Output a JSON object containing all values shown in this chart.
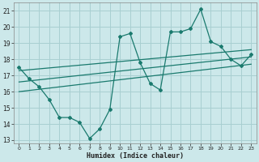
{
  "xlabel": "Humidex (Indice chaleur)",
  "ylabel": "",
  "bg_color": "#cce8ea",
  "grid_color": "#a8cfd1",
  "line_color": "#1a7a6e",
  "xlim": [
    -0.5,
    23.5
  ],
  "ylim": [
    12.8,
    21.5
  ],
  "yticks": [
    13,
    14,
    15,
    16,
    17,
    18,
    19,
    20,
    21
  ],
  "xticks": [
    0,
    1,
    2,
    3,
    4,
    5,
    6,
    7,
    8,
    9,
    10,
    11,
    12,
    13,
    14,
    15,
    16,
    17,
    18,
    19,
    20,
    21,
    22,
    23
  ],
  "main_line_x": [
    0,
    1,
    2,
    3,
    4,
    5,
    6,
    7,
    8,
    9,
    10,
    11,
    12,
    13,
    14,
    15,
    16,
    17,
    18,
    19,
    20,
    21,
    22,
    23
  ],
  "main_line_y": [
    17.5,
    16.8,
    16.3,
    15.5,
    14.4,
    14.4,
    14.1,
    13.1,
    13.7,
    14.9,
    19.4,
    19.6,
    17.8,
    16.5,
    16.1,
    19.7,
    19.7,
    19.9,
    21.1,
    19.1,
    18.8,
    18.0,
    17.6,
    18.3
  ],
  "upper_line_x": [
    0,
    23
  ],
  "upper_line_y": [
    17.3,
    18.6
  ],
  "lower_line_x": [
    0,
    23
  ],
  "lower_line_y": [
    16.0,
    17.7
  ],
  "mid_line_x": [
    0,
    23
  ],
  "mid_line_y": [
    16.6,
    18.15
  ]
}
